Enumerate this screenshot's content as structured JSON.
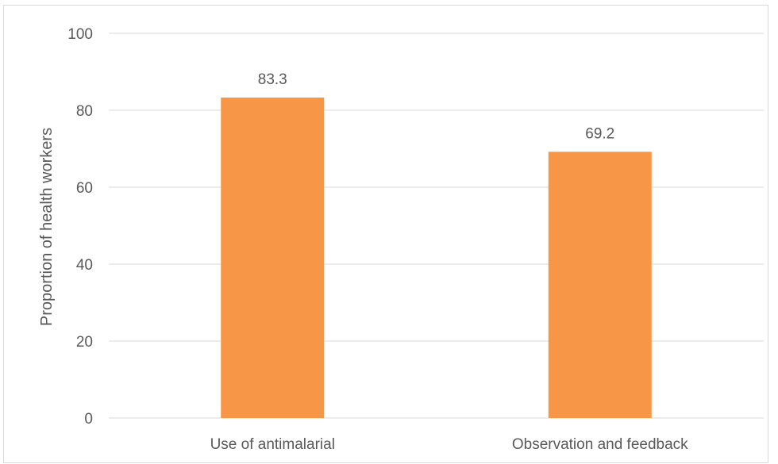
{
  "chart_data": {
    "type": "bar",
    "title": "",
    "xlabel": "",
    "ylabel": "Proportion of health workers",
    "categories": [
      "Use of antimalarial",
      "Observation and feedback"
    ],
    "values": [
      83.3,
      69.2
    ],
    "value_labels": [
      "83.3",
      "69.2"
    ],
    "ylim": [
      0,
      100
    ],
    "yticks": [
      0,
      20,
      40,
      60,
      80,
      100
    ],
    "grid": true,
    "legend": "none",
    "colors": {
      "bar": "#F79646",
      "grid": "#d9d9d9",
      "text": "#595959"
    }
  }
}
